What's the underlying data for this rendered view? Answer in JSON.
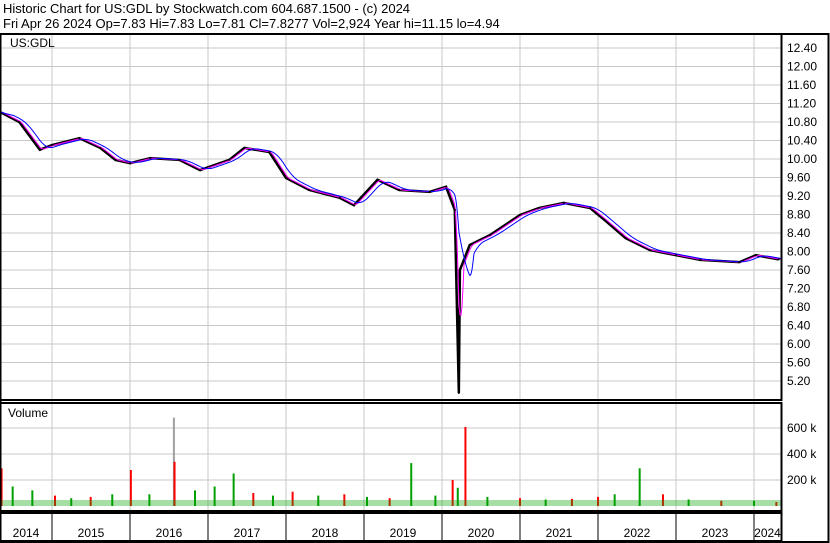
{
  "header": {
    "title": "Historic Chart for US:GDL by Stockwatch.com 604.687.1500 - (c) 2024",
    "quote": "Fri Apr 26 2024   Op=7.83   Hi=7.83   Lo=7.81   Cl=7.8277   Vol=2,924   Year hi=11.15   lo=4.94"
  },
  "colors": {
    "price": "#000000",
    "ma_short": "#ff00ff",
    "ma_long": "#0000ff",
    "vol_up": "#00a000",
    "vol_down": "#ff0000",
    "vol_flat": "#a0a0a0",
    "grid": "#c8c8c8"
  },
  "chart_data": [
    {
      "type": "line",
      "title": "US:GDL",
      "y_ticks": [
        "12.40",
        "12.00",
        "11.60",
        "11.20",
        "10.80",
        "10.40",
        "10.00",
        "9.60",
        "9.20",
        "8.80",
        "8.40",
        "8.00",
        "7.60",
        "7.20",
        "6.80",
        "6.40",
        "6.00",
        "5.60",
        "5.20"
      ],
      "ylim": [
        5.0,
        12.7
      ],
      "x_ticks": [
        "2014",
        "2015",
        "2016",
        "2017",
        "2018",
        "2019",
        "2020",
        "2021",
        "2022",
        "2023",
        "2024"
      ],
      "grid": true,
      "series": [
        {
          "values": [
            [
              "2014-05-01",
              11.02
            ],
            [
              "2014-08-01",
              10.8
            ],
            [
              "2014-11-05",
              10.2
            ],
            [
              "2015-01-01",
              10.3
            ],
            [
              "2015-05-10",
              10.45
            ],
            [
              "2015-08-15",
              10.24
            ],
            [
              "2015-10-25",
              9.98
            ],
            [
              "2016-01-01",
              9.91
            ],
            [
              "2016-04-05",
              10.02
            ],
            [
              "2016-08-20",
              9.98
            ],
            [
              "2016-11-25",
              9.76
            ],
            [
              "2017-04-10",
              9.98
            ],
            [
              "2017-06-20",
              10.24
            ],
            [
              "2017-10-15",
              10.15
            ],
            [
              "2018-01-01",
              9.59
            ],
            [
              "2018-04-20",
              9.33
            ],
            [
              "2018-09-10",
              9.16
            ],
            [
              "2018-11-15",
              9.0
            ],
            [
              "2019-03-05",
              9.55
            ],
            [
              "2019-06-15",
              9.33
            ],
            [
              "2019-11-05",
              9.29
            ],
            [
              "2020-01-20",
              9.4
            ],
            [
              "2020-03-01",
              8.9
            ],
            [
              "2020-03-20",
              4.94
            ],
            [
              "2020-03-25",
              7.6
            ],
            [
              "2020-05-10",
              8.14
            ],
            [
              "2020-08-15",
              8.36
            ],
            [
              "2021-01-01",
              8.79
            ],
            [
              "2021-03-30",
              8.94
            ],
            [
              "2021-07-25",
              9.05
            ],
            [
              "2021-11-25",
              8.94
            ],
            [
              "2022-02-01",
              8.68
            ],
            [
              "2022-05-10",
              8.29
            ],
            [
              "2022-09-01",
              8.03
            ],
            [
              "2023-01-01",
              7.92
            ],
            [
              "2023-04-25",
              7.82
            ],
            [
              "2023-10-25",
              7.77
            ],
            [
              "2024-01-10",
              7.92
            ],
            [
              "2024-04-26",
              7.83
            ]
          ]
        }
      ]
    },
    {
      "type": "bar",
      "title": "Volume",
      "y_ticks": [
        "600 k",
        "400 k",
        "200 k"
      ],
      "ylim": [
        0,
        800000
      ],
      "values": [
        [
          "2014-05-10",
          290000,
          "down"
        ],
        [
          "2014-07-01",
          150000,
          "up"
        ],
        [
          "2014-10-01",
          120000,
          "up"
        ],
        [
          "2015-01-15",
          80000,
          "down"
        ],
        [
          "2015-04-01",
          60000,
          "up"
        ],
        [
          "2015-07-01",
          70000,
          "down"
        ],
        [
          "2015-10-10",
          90000,
          "up"
        ],
        [
          "2016-01-05",
          277000,
          "down"
        ],
        [
          "2016-04-01",
          90000,
          "up"
        ],
        [
          "2016-07-25",
          680000,
          "flat"
        ],
        [
          "2016-07-28",
          340000,
          "down"
        ],
        [
          "2016-11-01",
          120000,
          "up"
        ],
        [
          "2017-02-01",
          150000,
          "up"
        ],
        [
          "2017-05-01",
          250000,
          "up"
        ],
        [
          "2017-08-01",
          100000,
          "down"
        ],
        [
          "2017-11-01",
          80000,
          "up"
        ],
        [
          "2018-02-01",
          110000,
          "down"
        ],
        [
          "2018-06-01",
          80000,
          "up"
        ],
        [
          "2018-10-01",
          90000,
          "down"
        ],
        [
          "2019-01-15",
          70000,
          "up"
        ],
        [
          "2019-05-01",
          60000,
          "down"
        ],
        [
          "2019-08-10",
          330000,
          "up"
        ],
        [
          "2019-12-01",
          80000,
          "up"
        ],
        [
          "2020-02-20",
          200000,
          "down"
        ],
        [
          "2020-03-15",
          140000,
          "up"
        ],
        [
          "2020-04-20",
          608000,
          "down"
        ],
        [
          "2020-08-01",
          70000,
          "up"
        ],
        [
          "2021-01-01",
          60000,
          "down"
        ],
        [
          "2021-05-01",
          50000,
          "up"
        ],
        [
          "2021-09-01",
          55000,
          "down"
        ],
        [
          "2022-01-01",
          70000,
          "down"
        ],
        [
          "2022-03-20",
          90000,
          "up"
        ],
        [
          "2022-07-15",
          290000,
          "up"
        ],
        [
          "2022-11-01",
          90000,
          "down"
        ],
        [
          "2023-03-01",
          50000,
          "up"
        ],
        [
          "2023-08-01",
          40000,
          "down"
        ],
        [
          "2024-01-01",
          40000,
          "up"
        ],
        [
          "2024-04-15",
          30000,
          "down"
        ]
      ]
    }
  ]
}
